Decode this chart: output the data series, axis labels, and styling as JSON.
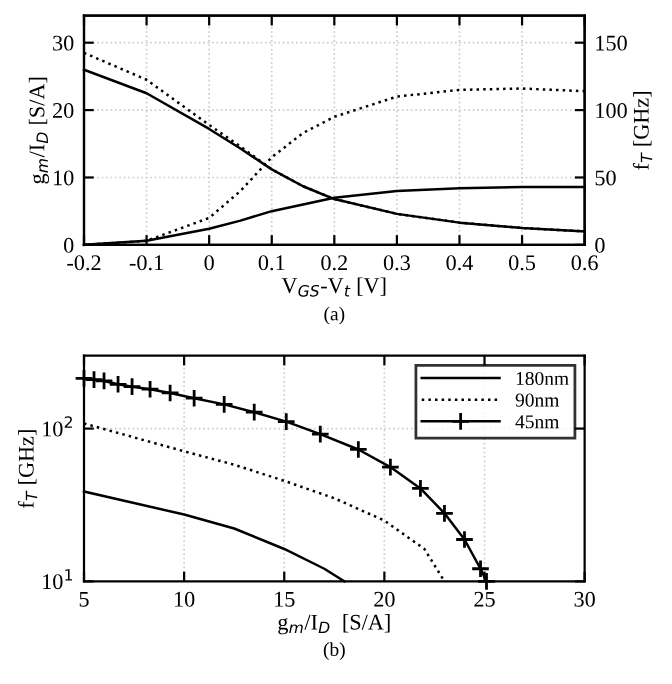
{
  "chart_data": [
    {
      "type": "line",
      "xlabel": "V$_{GS}$-V$_{t}$ [V]",
      "ylabel": "g$_{m}$/I$_{D}$ [S/A]",
      "y2label": "f$_{T}$ [GHz]",
      "annotations": [
        "(a)"
      ],
      "x": [
        -0.2,
        -0.1,
        0,
        0.05,
        0.1,
        0.15,
        0.2,
        0.3,
        0.4,
        0.5,
        0.6
      ],
      "series": [
        {
          "color": "#000000",
          "line_style": "solid",
          "values": [
            26,
            22.5,
            17.2,
            14.3,
            11.2,
            8.7,
            6.8,
            4.6,
            3.3,
            2.5,
            2.0
          ]
        },
        {
          "color": "#000000",
          "line_style": "dotted",
          "values": [
            28.5,
            24.5,
            17.8,
            14.6,
            11.2,
            8.7,
            6.8,
            4.6,
            3.3,
            2.5,
            2.0
          ]
        },
        {
          "color": "#000000",
          "line_style": "solid",
          "axis": "y2",
          "values": [
            0,
            3,
            12,
            18,
            25,
            30,
            35,
            40,
            42,
            43,
            43
          ]
        },
        {
          "color": "#000000",
          "line_style": "dotted",
          "axis": "y2",
          "values": [
            0,
            3,
            20,
            40,
            65,
            83,
            95,
            110,
            115,
            116,
            114
          ]
        }
      ],
      "xlim": [
        -0.2,
        0.6
      ],
      "xticks": [
        -0.2,
        -0.1,
        0,
        0.1,
        0.2,
        0.3,
        0.4,
        0.5,
        0.6
      ],
      "ylim": [
        0,
        34
      ],
      "yticks": [
        0,
        10,
        20,
        30
      ],
      "y2lim": [
        0,
        170
      ],
      "y2ticks": [
        0,
        50,
        100,
        150
      ],
      "grid": true
    },
    {
      "type": "line",
      "xlabel": "g$_{m}$/I$_{D}$  [S/A]",
      "ylabel": "f$_{T}$ [GHz]",
      "annotations": [
        "(b)"
      ],
      "log": "y",
      "legend": "top right",
      "series": [
        {
          "name": "180nm",
          "color": "#000000",
          "line_style": "solid",
          "marker": "none",
          "x": [
            5,
            10,
            12.5,
            15,
            17,
            18
          ],
          "values": [
            38.7,
            27.4,
            22.2,
            16.3,
            12.1,
            10
          ]
        },
        {
          "name": "90nm",
          "color": "#000000",
          "line_style": "dotted",
          "marker": "none",
          "x": [
            5,
            10,
            12.5,
            15,
            17.5,
            20,
            22,
            23
          ],
          "values": [
            108,
            71,
            58,
            45.5,
            35,
            25,
            16.3,
            10
          ]
        },
        {
          "name": "45nm",
          "color": "#000000",
          "line_style": "solid",
          "marker": "cross",
          "x": [
            5,
            5.5,
            6,
            6.7,
            7.4,
            8.3,
            9.3,
            10.5,
            12,
            13.5,
            15.1,
            16.8,
            18.7,
            20.3,
            21.8,
            23,
            24,
            24.8,
            25.1
          ],
          "values": [
            213,
            209,
            205,
            195,
            188,
            181,
            171,
            158,
            144,
            128,
            111,
            92,
            73,
            56,
            40.6,
            27.9,
            18.8,
            12.1,
            10
          ]
        }
      ],
      "xlim": [
        5,
        30
      ],
      "xticks": [
        5,
        10,
        15,
        20,
        25,
        30
      ],
      "ylim": [
        10,
        300
      ],
      "yticks": [
        {
          "value": 10,
          "label": "10$^{1}$"
        },
        {
          "value": 100,
          "label": "10$^{2}$"
        }
      ],
      "grid": true
    }
  ]
}
